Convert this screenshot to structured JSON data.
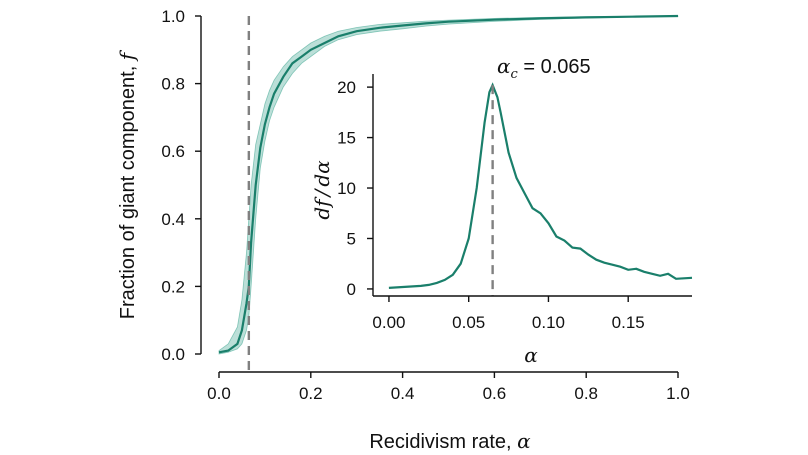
{
  "colors": {
    "line": "#1a7f6b",
    "band": "#2a9d86",
    "dashed": "#808080",
    "axis": "#111111"
  },
  "chart_data": [
    {
      "type": "line",
      "xlabel": "Recidivism rate, α",
      "xlabel_text": "Recidivism rate, ",
      "xlabel_symbol": "α",
      "ylabel": "Fraction of giant component, f",
      "ylabel_text": "Fraction of giant component, ",
      "ylabel_symbol": "f",
      "xlim": [
        0,
        1
      ],
      "ylim": [
        0,
        1
      ],
      "x_ticks": [
        0.0,
        0.2,
        0.4,
        0.6,
        0.8,
        1.0
      ],
      "x_tick_labels": [
        "0.0",
        "0.2",
        "0.4",
        "0.6",
        "0.8",
        "1.0"
      ],
      "y_ticks": [
        0.0,
        0.2,
        0.4,
        0.6,
        0.8,
        1.0
      ],
      "y_tick_labels": [
        "0.0",
        "0.2",
        "0.4",
        "0.6",
        "0.8",
        "1.0"
      ],
      "critical_line_x": 0.065,
      "series": [
        {
          "x": [
            0.0,
            0.02,
            0.04,
            0.05,
            0.06,
            0.065,
            0.07,
            0.08,
            0.09,
            0.1,
            0.11,
            0.12,
            0.14,
            0.16,
            0.18,
            0.2,
            0.23,
            0.26,
            0.3,
            0.35,
            0.4,
            0.45,
            0.5,
            0.6,
            0.7,
            0.8,
            0.9,
            1.0
          ],
          "y": [
            0.005,
            0.01,
            0.03,
            0.07,
            0.15,
            0.2,
            0.33,
            0.5,
            0.61,
            0.68,
            0.73,
            0.77,
            0.82,
            0.86,
            0.88,
            0.9,
            0.92,
            0.94,
            0.955,
            0.965,
            0.972,
            0.978,
            0.983,
            0.989,
            0.993,
            0.996,
            0.998,
            1.0
          ],
          "lower": [
            0.0,
            0.005,
            0.015,
            0.03,
            0.07,
            0.11,
            0.2,
            0.4,
            0.55,
            0.63,
            0.69,
            0.73,
            0.79,
            0.83,
            0.86,
            0.88,
            0.91,
            0.93,
            0.945,
            0.955,
            0.962,
            0.97,
            0.976,
            0.984,
            0.99,
            0.994,
            0.997,
            0.999
          ],
          "upper": [
            0.01,
            0.03,
            0.08,
            0.16,
            0.3,
            0.4,
            0.5,
            0.62,
            0.68,
            0.74,
            0.78,
            0.81,
            0.85,
            0.88,
            0.9,
            0.92,
            0.94,
            0.955,
            0.966,
            0.975,
            0.98,
            0.985,
            0.988,
            0.993,
            0.996,
            0.998,
            0.999,
            1.0
          ]
        }
      ]
    },
    {
      "type": "line",
      "inset": true,
      "xlabel": "α",
      "ylabel": "df/dα",
      "ylabel_parts": [
        "df",
        "/",
        "dα"
      ],
      "xlim": [
        -0.01,
        0.19
      ],
      "ylim": [
        -0.7,
        21.3
      ],
      "x_ticks": [
        0.0,
        0.05,
        0.1,
        0.15
      ],
      "x_tick_labels": [
        "0.00",
        "0.05",
        "0.10",
        "0.15"
      ],
      "y_ticks": [
        0,
        5,
        10,
        15,
        20
      ],
      "y_tick_labels": [
        "0",
        "5",
        "10",
        "15",
        "20"
      ],
      "critical_line_x": 0.065,
      "annotation": {
        "symbol": "α",
        "subscript": "c",
        "value_text": " = 0.065"
      },
      "series": [
        {
          "x": [
            0.0,
            0.01,
            0.02,
            0.025,
            0.03,
            0.035,
            0.04,
            0.045,
            0.05,
            0.055,
            0.06,
            0.063,
            0.065,
            0.068,
            0.07,
            0.075,
            0.08,
            0.085,
            0.09,
            0.095,
            0.1,
            0.105,
            0.11,
            0.115,
            0.12,
            0.125,
            0.13,
            0.135,
            0.14,
            0.145,
            0.15,
            0.155,
            0.16,
            0.165,
            0.17,
            0.175,
            0.18,
            0.185,
            0.19
          ],
          "y": [
            0.1,
            0.2,
            0.3,
            0.4,
            0.6,
            0.9,
            1.4,
            2.5,
            5.0,
            10.0,
            16.5,
            19.5,
            20.2,
            19.0,
            17.5,
            13.5,
            11.0,
            9.5,
            8.0,
            7.5,
            6.5,
            5.2,
            4.8,
            4.1,
            4.0,
            3.4,
            2.9,
            2.6,
            2.4,
            2.2,
            1.9,
            2.0,
            1.7,
            1.5,
            1.3,
            1.5,
            1.0,
            1.05,
            1.1
          ]
        }
      ]
    }
  ]
}
